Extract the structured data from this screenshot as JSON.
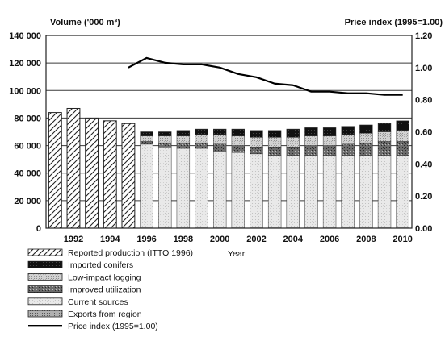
{
  "chart_data": {
    "type": "bar",
    "ylabel_left": "Volume ('000 m³)",
    "ylabel_right": "Price index (1995=1.00)",
    "xlabel": "Year",
    "ylim_left": [
      0,
      140000
    ],
    "ylim_right": [
      0,
      1.2
    ],
    "yticks_left": [
      "0",
      "20 000",
      "40 000",
      "60 000",
      "80 000",
      "100 000",
      "120 000",
      "140 000"
    ],
    "yticks_right": [
      "0.00",
      "0.20",
      "0.40",
      "0.60",
      "0.80",
      "1.00",
      "1.20"
    ],
    "x_tick_labels": [
      "1992",
      "1994",
      "1996",
      "1998",
      "2000",
      "2002",
      "2004",
      "2006",
      "2008",
      "2010"
    ],
    "years": [
      1991,
      1992,
      1993,
      1994,
      1995,
      1996,
      1997,
      1998,
      1999,
      2000,
      2001,
      2002,
      2003,
      2004,
      2005,
      2006,
      2007,
      2008,
      2009,
      2010
    ],
    "reported_production": {
      "name": "Reported production (ITTO 1996)",
      "years": [
        1991,
        1992,
        1993,
        1994,
        1995
      ],
      "values": [
        84000,
        87000,
        80000,
        78000,
        76000
      ]
    },
    "stacked_years": [
      1996,
      1997,
      1998,
      1999,
      2000,
      2001,
      2002,
      2003,
      2004,
      2005,
      2006,
      2007,
      2008,
      2009,
      2010
    ],
    "stack_series": [
      {
        "name": "Exports from region",
        "key": "exports",
        "values": [
          1000,
          1000,
          1000,
          1000,
          1000,
          1000,
          1000,
          1000,
          1000,
          1000,
          1000,
          1000,
          1000,
          1000,
          1000
        ]
      },
      {
        "name": "Current sources",
        "key": "current",
        "values": [
          60000,
          58000,
          57000,
          57000,
          55000,
          54000,
          53000,
          52000,
          52000,
          52000,
          52000,
          52000,
          52000,
          52000,
          52000
        ]
      },
      {
        "name": "Improved utilization",
        "key": "improved",
        "values": [
          2000,
          3000,
          4000,
          4000,
          5000,
          5000,
          5000,
          6000,
          6000,
          7000,
          7000,
          8000,
          9000,
          10000,
          10000
        ]
      },
      {
        "name": "Low-impact logging",
        "key": "lowimpact",
        "values": [
          4000,
          5000,
          5000,
          6000,
          7000,
          7000,
          7000,
          7000,
          7000,
          7000,
          7000,
          7000,
          7000,
          7000,
          8000
        ]
      },
      {
        "name": "Imported conifers",
        "key": "conifers",
        "values": [
          3000,
          3000,
          4000,
          4000,
          4000,
          5000,
          5000,
          5000,
          6000,
          6000,
          6000,
          6000,
          6000,
          6000,
          7000
        ]
      }
    ],
    "price_index": {
      "name": "Price index (1995=1.00)",
      "years": [
        1995,
        1996,
        1997,
        1998,
        1999,
        2000,
        2001,
        2002,
        2003,
        2004,
        2005,
        2006,
        2007,
        2008,
        2009,
        2010
      ],
      "values": [
        1.0,
        1.06,
        1.03,
        1.02,
        1.02,
        1.0,
        0.96,
        0.94,
        0.9,
        0.89,
        0.85,
        0.85,
        0.84,
        0.84,
        0.83,
        0.83
      ]
    },
    "grid": true,
    "legend": [
      {
        "key": "reported",
        "label": "Reported production (ITTO 1996)"
      },
      {
        "key": "conifers",
        "label": "Imported conifers"
      },
      {
        "key": "lowimpact",
        "label": "Low-impact logging"
      },
      {
        "key": "improved",
        "label": "Improved utilization"
      },
      {
        "key": "current",
        "label": "Current sources"
      },
      {
        "key": "exports",
        "label": "Exports from region"
      },
      {
        "key": "price",
        "label": "Price index (1995=1.00)"
      }
    ],
    "legend_placement": "bottom-left"
  }
}
